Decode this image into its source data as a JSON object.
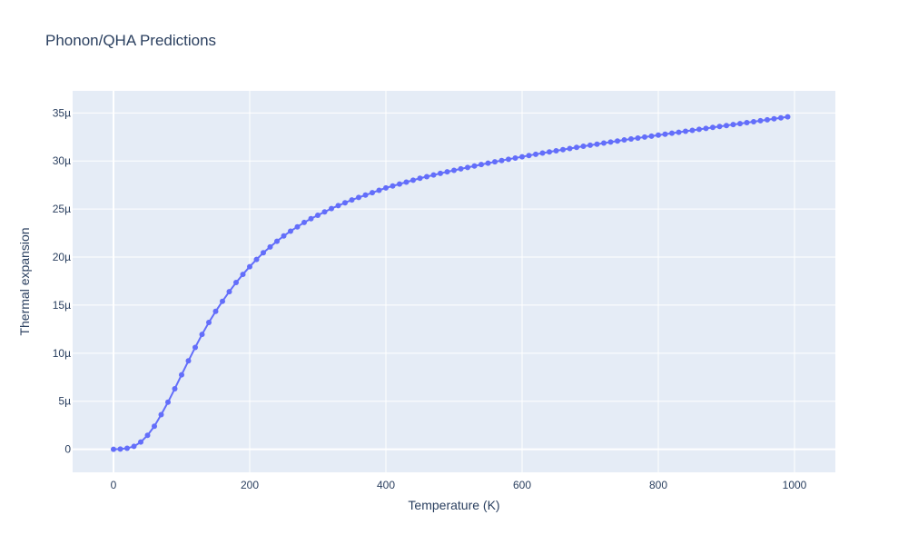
{
  "chart_data": {
    "type": "line",
    "title": "Phonon/QHA Predictions",
    "xlabel": "Temperature (K)",
    "ylabel": "Thermal expansion",
    "xlim": [
      -60,
      1060
    ],
    "ylim": [
      -2.4e-06,
      3.73e-05
    ],
    "x_ticks": [
      0,
      200,
      400,
      600,
      800,
      1000
    ],
    "x_tick_labels": [
      "0",
      "200",
      "400",
      "600",
      "800",
      "1000"
    ],
    "y_ticks": [
      0,
      5e-06,
      1e-05,
      1.5e-05,
      2e-05,
      2.5e-05,
      3e-05,
      3.5e-05
    ],
    "y_tick_labels": [
      "0",
      "5µ",
      "10µ",
      "15µ",
      "20µ",
      "25µ",
      "30µ",
      "35µ"
    ],
    "grid": true,
    "legend": "none",
    "colors": {
      "series": "#636efa",
      "plot_bg": "#e5ecf6",
      "grid": "#ffffff",
      "text": "#2a3f5f"
    },
    "series": [
      {
        "x": [
          0,
          10,
          20,
          30,
          40,
          50,
          60,
          70,
          80,
          90,
          100,
          110,
          120,
          130,
          140,
          150,
          160,
          170,
          180,
          190,
          200,
          210,
          220,
          230,
          240,
          250,
          260,
          270,
          280,
          290,
          300,
          310,
          320,
          330,
          340,
          350,
          360,
          370,
          380,
          390,
          400,
          410,
          420,
          430,
          440,
          450,
          460,
          470,
          480,
          490,
          500,
          510,
          520,
          530,
          540,
          550,
          560,
          570,
          580,
          590,
          600,
          610,
          620,
          630,
          640,
          650,
          660,
          670,
          680,
          690,
          700,
          710,
          720,
          730,
          740,
          750,
          760,
          770,
          780,
          790,
          800,
          810,
          820,
          830,
          840,
          850,
          860,
          870,
          880,
          890,
          900,
          910,
          920,
          930,
          940,
          950,
          960,
          970,
          980,
          990
        ],
        "values": [
          0,
          2e-08,
          1e-07,
          3e-07,
          7.5e-07,
          1.45e-06,
          2.4e-06,
          3.6e-06,
          4.9e-06,
          6.3e-06,
          7.75e-06,
          9.2e-06,
          1.06e-05,
          1.195e-05,
          1.32e-05,
          1.435e-05,
          1.54e-05,
          1.64e-05,
          1.735e-05,
          1.82e-05,
          1.9e-05,
          1.975e-05,
          2.045e-05,
          2.105e-05,
          2.165e-05,
          2.22e-05,
          2.27e-05,
          2.315e-05,
          2.36e-05,
          2.4e-05,
          2.435e-05,
          2.47e-05,
          2.505e-05,
          2.535e-05,
          2.565e-05,
          2.595e-05,
          2.62e-05,
          2.645e-05,
          2.67e-05,
          2.695e-05,
          2.72e-05,
          2.74e-05,
          2.76e-05,
          2.78e-05,
          2.8e-05,
          2.82e-05,
          2.837e-05,
          2.854e-05,
          2.871e-05,
          2.887e-05,
          2.903e-05,
          2.918e-05,
          2.933e-05,
          2.948e-05,
          2.963e-05,
          2.977e-05,
          2.991e-05,
          3.005e-05,
          3.018e-05,
          3.031e-05,
          3.044e-05,
          3.057e-05,
          3.07e-05,
          3.082e-05,
          3.094e-05,
          3.106e-05,
          3.118e-05,
          3.13e-05,
          3.142e-05,
          3.153e-05,
          3.164e-05,
          3.175e-05,
          3.186e-05,
          3.197e-05,
          3.208e-05,
          3.219e-05,
          3.229e-05,
          3.239e-05,
          3.249e-05,
          3.259e-05,
          3.269e-05,
          3.279e-05,
          3.289e-05,
          3.299e-05,
          3.309e-05,
          3.319e-05,
          3.329e-05,
          3.339e-05,
          3.349e-05,
          3.359e-05,
          3.369e-05,
          3.379e-05,
          3.389e-05,
          3.399e-05,
          3.409e-05,
          3.419e-05,
          3.429e-05,
          3.439e-05,
          3.449e-05,
          3.459e-05
        ]
      }
    ]
  }
}
